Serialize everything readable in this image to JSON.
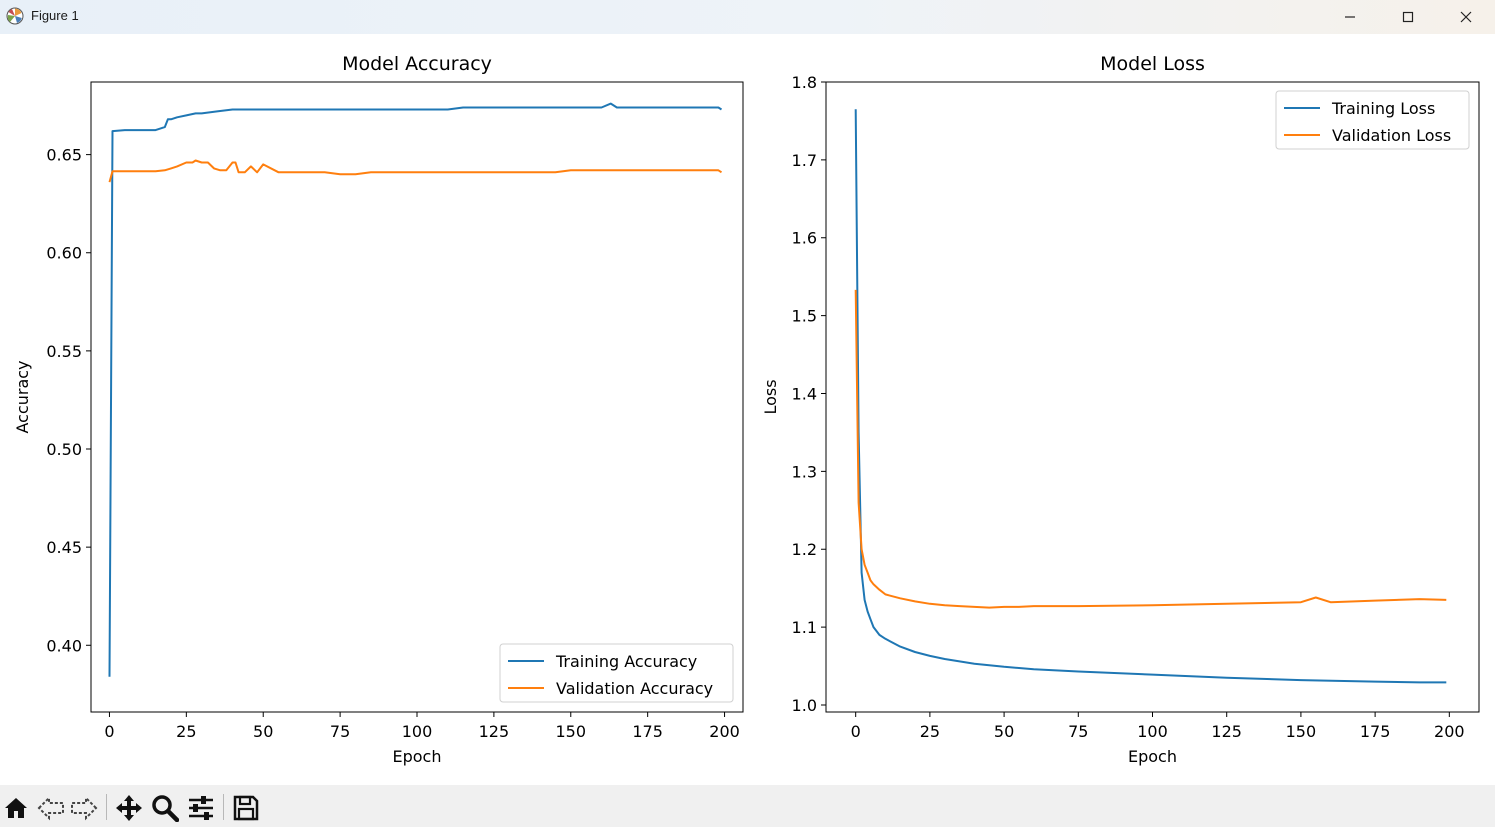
{
  "window": {
    "title": "Figure 1",
    "icons": [
      "matplotlib-icon",
      "minimize-icon",
      "maximize-icon",
      "close-icon"
    ]
  },
  "toolbar": {
    "buttons": [
      "home-icon",
      "back-icon",
      "forward-icon",
      "pan-icon",
      "zoom-icon",
      "configure-subplots-icon",
      "save-icon"
    ]
  },
  "colors": {
    "training": "#1f77b4",
    "validation": "#ff7f0e"
  },
  "chart_data": [
    {
      "type": "line",
      "title": "Model Accuracy",
      "xlabel": "Epoch",
      "ylabel": "Accuracy",
      "xlim": [
        -6,
        206
      ],
      "ylim": [
        0.366,
        0.687
      ],
      "xticks": [
        0,
        25,
        50,
        75,
        100,
        125,
        150,
        175,
        200
      ],
      "xtick_labels": [
        "0",
        "25",
        "50",
        "75",
        "100",
        "125",
        "150",
        "175",
        "200"
      ],
      "yticks": [
        0.4,
        0.45,
        0.5,
        0.55,
        0.6,
        0.65
      ],
      "ytick_labels": [
        "0.40",
        "0.45",
        "0.50",
        "0.55",
        "0.60",
        "0.65"
      ],
      "legend": "lower-right",
      "series": [
        {
          "name": "Training Accuracy",
          "x": [
            0,
            1,
            5,
            10,
            15,
            18,
            19,
            20,
            22,
            25,
            28,
            30,
            35,
            40,
            45,
            50,
            55,
            60,
            65,
            70,
            75,
            80,
            85,
            90,
            95,
            100,
            105,
            110,
            115,
            120,
            125,
            130,
            135,
            140,
            145,
            150,
            155,
            160,
            163,
            165,
            170,
            175,
            180,
            185,
            190,
            195,
            198,
            199
          ],
          "y": [
            0.384,
            0.662,
            0.6625,
            0.6625,
            0.6625,
            0.664,
            0.668,
            0.668,
            0.669,
            0.67,
            0.671,
            0.671,
            0.672,
            0.673,
            0.673,
            0.673,
            0.673,
            0.673,
            0.673,
            0.673,
            0.673,
            0.673,
            0.673,
            0.673,
            0.673,
            0.673,
            0.673,
            0.673,
            0.674,
            0.674,
            0.674,
            0.674,
            0.674,
            0.674,
            0.674,
            0.674,
            0.674,
            0.674,
            0.676,
            0.674,
            0.674,
            0.674,
            0.674,
            0.674,
            0.674,
            0.674,
            0.674,
            0.673
          ]
        },
        {
          "name": "Validation Accuracy",
          "x": [
            0,
            1,
            5,
            10,
            15,
            18,
            20,
            22,
            25,
            27,
            28,
            30,
            32,
            34,
            36,
            38,
            40,
            41,
            42,
            44,
            46,
            48,
            50,
            55,
            60,
            65,
            70,
            75,
            80,
            85,
            90,
            95,
            100,
            105,
            110,
            115,
            120,
            125,
            130,
            135,
            140,
            145,
            150,
            155,
            160,
            165,
            170,
            175,
            180,
            185,
            190,
            195,
            198,
            199
          ],
          "y": [
            0.636,
            0.6415,
            0.6415,
            0.6415,
            0.6415,
            0.642,
            0.643,
            0.644,
            0.646,
            0.646,
            0.647,
            0.646,
            0.646,
            0.643,
            0.642,
            0.642,
            0.646,
            0.646,
            0.641,
            0.641,
            0.644,
            0.641,
            0.645,
            0.641,
            0.641,
            0.641,
            0.641,
            0.64,
            0.64,
            0.641,
            0.641,
            0.641,
            0.641,
            0.641,
            0.641,
            0.641,
            0.641,
            0.641,
            0.641,
            0.641,
            0.641,
            0.641,
            0.642,
            0.642,
            0.642,
            0.642,
            0.642,
            0.642,
            0.642,
            0.642,
            0.642,
            0.642,
            0.642,
            0.641
          ]
        }
      ]
    },
    {
      "type": "line",
      "title": "Model Loss",
      "xlabel": "Epoch",
      "ylabel": "Loss",
      "xlim": [
        -10,
        210
      ],
      "ylim": [
        0.991,
        1.8
      ],
      "xticks": [
        0,
        25,
        50,
        75,
        100,
        125,
        150,
        175,
        200
      ],
      "xtick_labels": [
        "0",
        "25",
        "50",
        "75",
        "100",
        "125",
        "150",
        "175",
        "200"
      ],
      "yticks": [
        1.0,
        1.1,
        1.2,
        1.3,
        1.4,
        1.5,
        1.6,
        1.7,
        1.8
      ],
      "ytick_labels": [
        "1.0",
        "1.1",
        "1.2",
        "1.3",
        "1.4",
        "1.5",
        "1.6",
        "1.7",
        "1.8"
      ],
      "legend": "upper-right",
      "series": [
        {
          "name": "Training Loss",
          "x": [
            0,
            1,
            2,
            3,
            4,
            5,
            6,
            8,
            10,
            15,
            20,
            25,
            30,
            40,
            50,
            60,
            75,
            100,
            125,
            150,
            175,
            190,
            199
          ],
          "y": [
            1.765,
            1.35,
            1.17,
            1.135,
            1.12,
            1.11,
            1.1,
            1.09,
            1.085,
            1.075,
            1.068,
            1.063,
            1.059,
            1.053,
            1.049,
            1.046,
            1.043,
            1.039,
            1.035,
            1.032,
            1.03,
            1.029,
            1.029
          ]
        },
        {
          "name": "Validation Loss",
          "x": [
            0,
            1,
            2,
            3,
            4,
            5,
            6,
            8,
            10,
            15,
            20,
            25,
            30,
            35,
            40,
            45,
            50,
            55,
            60,
            75,
            100,
            125,
            150,
            155,
            160,
            175,
            190,
            199
          ],
          "y": [
            1.533,
            1.26,
            1.2,
            1.18,
            1.17,
            1.16,
            1.155,
            1.148,
            1.142,
            1.137,
            1.133,
            1.13,
            1.128,
            1.127,
            1.126,
            1.125,
            1.126,
            1.126,
            1.127,
            1.127,
            1.128,
            1.13,
            1.132,
            1.138,
            1.132,
            1.134,
            1.136,
            1.135
          ]
        }
      ]
    }
  ]
}
